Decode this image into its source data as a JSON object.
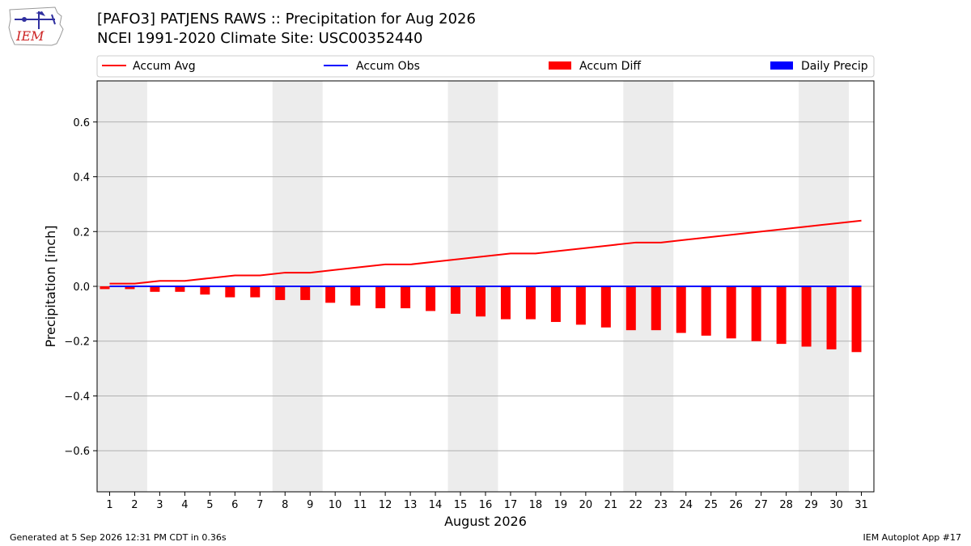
{
  "header": {
    "logo_text": "IEM",
    "title_line1": "[PAFO3] PATJENS RAWS :: Precipitation for Aug 2026",
    "title_line2": "NCEI 1991-2020 Climate Site: USC00352440"
  },
  "footer": {
    "generated": "Generated at 5 Sep 2026 12:31 PM CDT in 0.36s",
    "app": "IEM Autoplot App #17"
  },
  "chart_data": {
    "type": "bar",
    "xlabel": "August 2026",
    "ylabel": "Precipitation [inch]",
    "ylim": [
      -0.75,
      0.75
    ],
    "yticks": [
      -0.6,
      -0.4,
      -0.2,
      0.0,
      0.2,
      0.4,
      0.6
    ],
    "ytick_labels": [
      "−0.6",
      "−0.4",
      "−0.2",
      "0.0",
      "0.2",
      "0.4",
      "0.6"
    ],
    "grid": "horizontal",
    "legend_placement": "top",
    "weekend_shading_days": [
      [
        1,
        2
      ],
      [
        8,
        9
      ],
      [
        15,
        16
      ],
      [
        22,
        23
      ],
      [
        29,
        30
      ]
    ],
    "days": [
      1,
      2,
      3,
      4,
      5,
      6,
      7,
      8,
      9,
      10,
      11,
      12,
      13,
      14,
      15,
      16,
      17,
      18,
      19,
      20,
      21,
      22,
      23,
      24,
      25,
      26,
      27,
      28,
      29,
      30,
      31
    ],
    "series": [
      {
        "name": "Accum Avg",
        "type": "line",
        "color": "#ff0000",
        "values": [
          0.01,
          0.01,
          0.02,
          0.02,
          0.03,
          0.04,
          0.04,
          0.05,
          0.05,
          0.06,
          0.07,
          0.08,
          0.08,
          0.09,
          0.1,
          0.11,
          0.12,
          0.12,
          0.13,
          0.14,
          0.15,
          0.16,
          0.16,
          0.17,
          0.18,
          0.19,
          0.2,
          0.21,
          0.22,
          0.23,
          0.24
        ]
      },
      {
        "name": "Accum Obs",
        "type": "line",
        "color": "#0000ff",
        "values": [
          0,
          0,
          0,
          0,
          0,
          0,
          0,
          0,
          0,
          0,
          0,
          0,
          0,
          0,
          0,
          0,
          0,
          0,
          0,
          0,
          0,
          0,
          0,
          0,
          0,
          0,
          0,
          0,
          0,
          0,
          0
        ]
      },
      {
        "name": "Accum Diff",
        "type": "bar",
        "color": "#ff0000",
        "values": [
          -0.01,
          -0.01,
          -0.02,
          -0.02,
          -0.03,
          -0.04,
          -0.04,
          -0.05,
          -0.05,
          -0.06,
          -0.07,
          -0.08,
          -0.08,
          -0.09,
          -0.1,
          -0.11,
          -0.12,
          -0.12,
          -0.13,
          -0.14,
          -0.15,
          -0.16,
          -0.16,
          -0.17,
          -0.18,
          -0.19,
          -0.2,
          -0.21,
          -0.22,
          -0.23,
          -0.24
        ]
      },
      {
        "name": "Daily Precip",
        "type": "bar",
        "color": "#0000ff",
        "values": [
          0,
          0,
          0,
          0,
          0,
          0,
          0,
          0,
          0,
          0,
          0,
          0,
          0,
          0,
          0,
          0,
          0,
          0,
          0,
          0,
          0,
          0,
          0,
          0,
          0,
          0,
          0,
          0,
          0,
          0,
          0
        ]
      }
    ],
    "colors": {
      "shade": "#ececec",
      "grid": "#b0b0b0"
    }
  }
}
